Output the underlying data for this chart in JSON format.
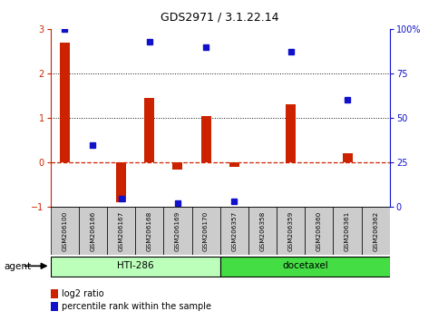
{
  "title": "GDS2971 / 3.1.22.14",
  "samples": [
    "GSM206100",
    "GSM206166",
    "GSM206167",
    "GSM206168",
    "GSM206169",
    "GSM206170",
    "GSM206357",
    "GSM206358",
    "GSM206359",
    "GSM206360",
    "GSM206361",
    "GSM206362"
  ],
  "log2_ratio": [
    2.7,
    0.0,
    -0.9,
    1.45,
    -0.15,
    1.05,
    -0.1,
    0.0,
    1.3,
    0.0,
    0.2,
    0.0
  ],
  "percentile_rank": [
    100,
    35,
    5,
    93,
    2,
    90,
    3,
    null,
    87,
    null,
    60,
    null
  ],
  "ylim_left": [
    -1,
    3
  ],
  "ylim_right": [
    0,
    100
  ],
  "yticks_left": [
    -1,
    0,
    1,
    2,
    3
  ],
  "yticks_right": [
    0,
    25,
    50,
    75,
    100
  ],
  "bar_color": "#cc2200",
  "dot_color": "#1111cc",
  "hti286_color": "#bbffbb",
  "docetaxel_color": "#44dd44",
  "sample_box_color": "#cccccc",
  "zero_line_color": "#cc2200",
  "dotline_color": "#111111",
  "bar_width": 0.35,
  "title_fontsize": 9,
  "tick_fontsize": 7,
  "label_fontsize": 7,
  "agent_fontsize": 7.5
}
